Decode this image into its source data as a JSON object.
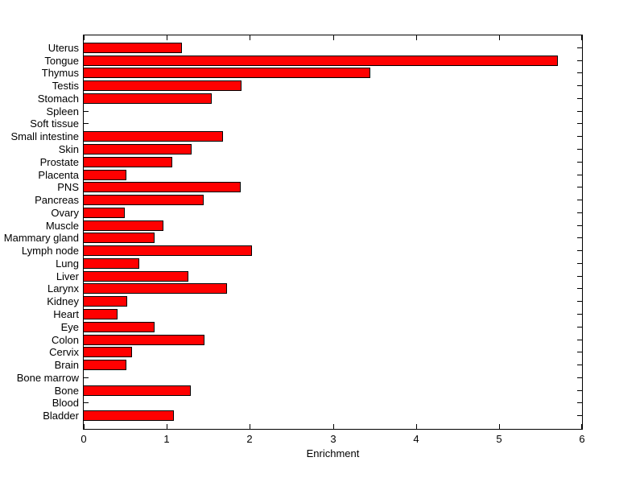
{
  "chart_data": {
    "type": "bar",
    "orientation": "horizontal",
    "title": "",
    "xlabel": "Enrichment",
    "ylabel": "",
    "xlim": [
      0,
      6
    ],
    "xticks": [
      "0",
      "1",
      "2",
      "3",
      "4",
      "5",
      "6"
    ],
    "grid": false,
    "legend": null,
    "category_order": "top-to-bottom",
    "categories": [
      "Uterus",
      "Tongue",
      "Thymus",
      "Testis",
      "Stomach",
      "Spleen",
      "Soft tissue",
      "Small intestine",
      "Skin",
      "Prostate",
      "Placenta",
      "PNS",
      "Pancreas",
      "Ovary",
      "Muscle",
      "Mammary gland",
      "Lymph node",
      "Lung",
      "Liver",
      "Larynx",
      "Kidney",
      "Heart",
      "Eye",
      "Colon",
      "Cervix",
      "Brain",
      "Bone marrow",
      "Bone",
      "Blood",
      "Bladder"
    ],
    "values": [
      1.17,
      5.7,
      3.44,
      1.89,
      1.53,
      0,
      0,
      1.67,
      1.29,
      1.06,
      0.5,
      1.88,
      1.43,
      0.48,
      0.95,
      0.84,
      2.02,
      0.66,
      1.25,
      1.72,
      0.51,
      0.4,
      0.84,
      1.44,
      0.57,
      0.5,
      0,
      1.28,
      0,
      1.08
    ],
    "colors": {
      "bar_fill": "#ff0000",
      "bar_edge": "#000000",
      "axis": "#000000",
      "text": "#000000",
      "background": "#ffffff"
    }
  }
}
